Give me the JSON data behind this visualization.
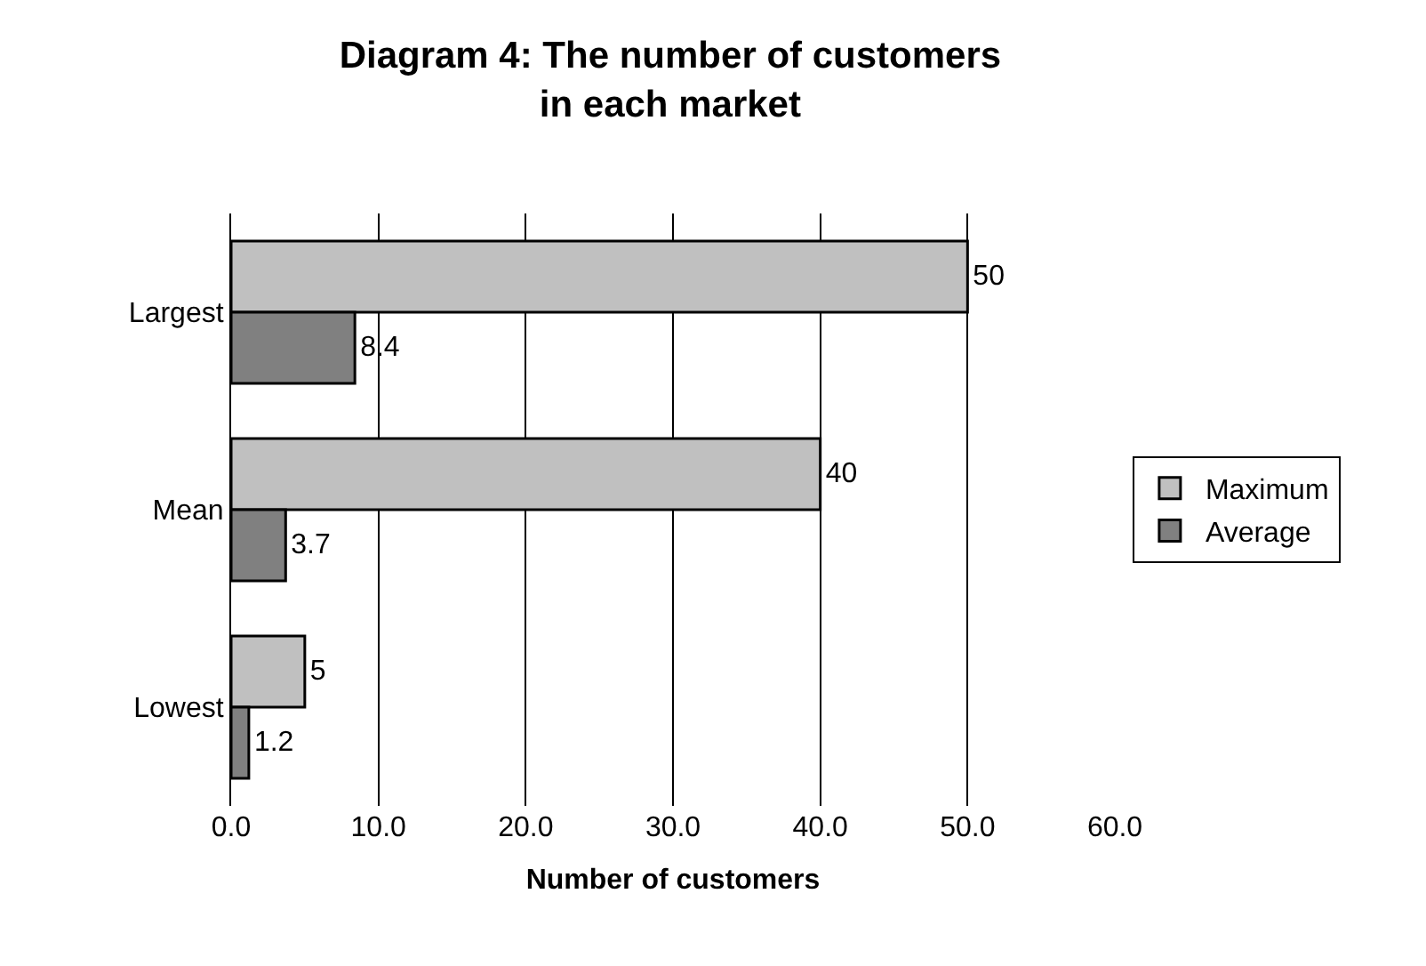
{
  "chart_data": {
    "type": "bar",
    "orientation": "horizontal",
    "title": "Diagram 4: The number of customers\nin each market",
    "xlabel": "Number of customers",
    "categories": [
      "Largest",
      "Mean",
      "Lowest"
    ],
    "series": [
      {
        "name": "Maximum",
        "color": "#c0c0c0",
        "values": [
          50,
          40,
          5
        ]
      },
      {
        "name": "Average",
        "color": "#808080",
        "values": [
          8.4,
          3.7,
          1.2
        ]
      }
    ],
    "xlim": [
      0,
      60
    ],
    "xticks": [
      {
        "value": 0,
        "label": "0.0"
      },
      {
        "value": 10,
        "label": "10.0"
      },
      {
        "value": 20,
        "label": "20.0"
      },
      {
        "value": 30,
        "label": "30.0"
      },
      {
        "value": 40,
        "label": "40.0"
      },
      {
        "value": 50,
        "label": "50.0"
      },
      {
        "value": 60,
        "label": "60.0"
      }
    ],
    "grid": "x",
    "legend": "right",
    "data_labels": true
  }
}
